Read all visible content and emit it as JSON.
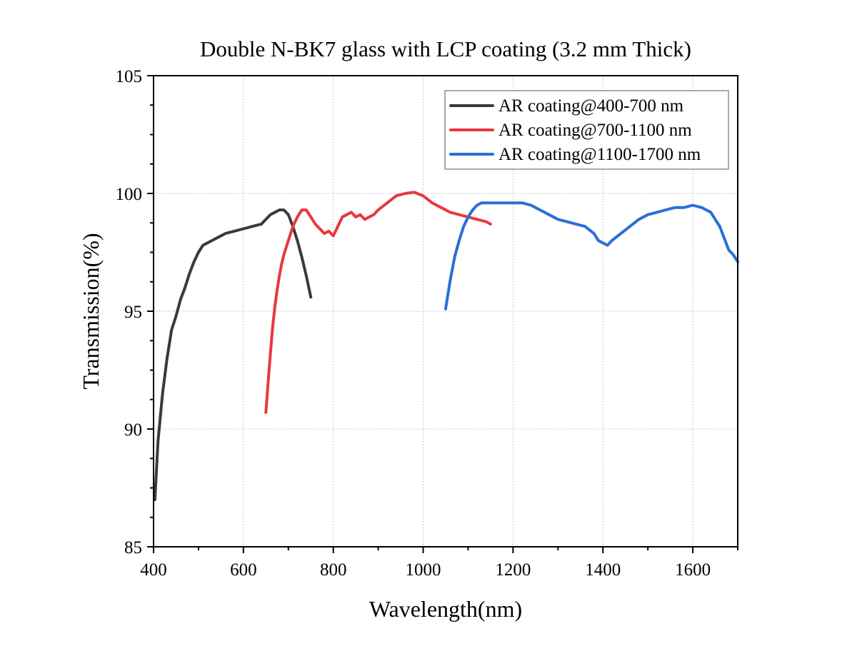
{
  "chart_data": {
    "type": "line",
    "title": "Double N-BK7 glass with LCP coating (3.2 mm Thick)",
    "xlabel": "Wavelength(nm)",
    "ylabel": "Transmission(%)",
    "xlim": [
      400,
      1700
    ],
    "ylim": [
      85,
      105
    ],
    "xticks": [
      400,
      600,
      800,
      1000,
      1200,
      1400,
      1600
    ],
    "yticks": [
      85,
      90,
      95,
      100,
      105
    ],
    "xtick_labels": [
      "400",
      "600",
      "800",
      "1000",
      "1200",
      "1400",
      "1600"
    ],
    "ytick_labels": [
      "85",
      "90",
      "95",
      "100",
      "105"
    ],
    "grid": true,
    "legend_position": "top-right",
    "series": [
      {
        "name": "AR coating@400-700 nm",
        "color": "#3a3a3a",
        "x": [
          403,
          410,
          420,
          430,
          440,
          450,
          460,
          470,
          480,
          490,
          500,
          510,
          520,
          530,
          540,
          560,
          580,
          600,
          620,
          640,
          660,
          680,
          690,
          700,
          710,
          720,
          730,
          740,
          750
        ],
        "y": [
          87.0,
          89.5,
          91.5,
          93.0,
          94.2,
          94.8,
          95.5,
          96.0,
          96.6,
          97.1,
          97.5,
          97.8,
          97.9,
          98.0,
          98.1,
          98.3,
          98.4,
          98.5,
          98.6,
          98.7,
          99.1,
          99.3,
          99.3,
          99.1,
          98.6,
          98.0,
          97.3,
          96.5,
          95.6
        ]
      },
      {
        "name": "AR coating@700-1100 nm",
        "color": "#e8383d",
        "x": [
          650,
          655,
          660,
          665,
          670,
          675,
          680,
          685,
          690,
          700,
          710,
          720,
          730,
          740,
          750,
          760,
          770,
          780,
          790,
          800,
          810,
          820,
          830,
          840,
          850,
          860,
          870,
          880,
          890,
          900,
          920,
          940,
          960,
          980,
          1000,
          1020,
          1040,
          1060,
          1080,
          1100,
          1120,
          1140,
          1150
        ],
        "y": [
          90.7,
          92.0,
          93.2,
          94.3,
          95.2,
          95.9,
          96.5,
          97.0,
          97.4,
          98.0,
          98.6,
          99.0,
          99.3,
          99.3,
          99.0,
          98.7,
          98.5,
          98.3,
          98.4,
          98.2,
          98.6,
          99.0,
          99.1,
          99.2,
          99.0,
          99.1,
          98.9,
          99.0,
          99.1,
          99.3,
          99.6,
          99.9,
          100.0,
          100.05,
          99.9,
          99.6,
          99.4,
          99.2,
          99.1,
          99.0,
          98.9,
          98.8,
          98.7
        ]
      },
      {
        "name": "AR coating@1100-1700 nm",
        "color": "#2a6fd4",
        "x": [
          1050,
          1060,
          1070,
          1080,
          1090,
          1100,
          1110,
          1120,
          1130,
          1140,
          1150,
          1160,
          1180,
          1200,
          1220,
          1240,
          1260,
          1280,
          1300,
          1320,
          1340,
          1360,
          1380,
          1390,
          1400,
          1410,
          1420,
          1440,
          1460,
          1480,
          1500,
          1520,
          1540,
          1560,
          1580,
          1600,
          1620,
          1640,
          1660,
          1670,
          1680,
          1690,
          1700
        ],
        "y": [
          95.1,
          96.3,
          97.3,
          98.0,
          98.6,
          99.0,
          99.3,
          99.5,
          99.6,
          99.6,
          99.6,
          99.6,
          99.6,
          99.6,
          99.6,
          99.5,
          99.3,
          99.1,
          98.9,
          98.8,
          98.7,
          98.6,
          98.3,
          98.0,
          97.9,
          97.8,
          98.0,
          98.3,
          98.6,
          98.9,
          99.1,
          99.2,
          99.3,
          99.4,
          99.4,
          99.5,
          99.4,
          99.2,
          98.6,
          98.1,
          97.6,
          97.4,
          97.1
        ]
      }
    ]
  }
}
